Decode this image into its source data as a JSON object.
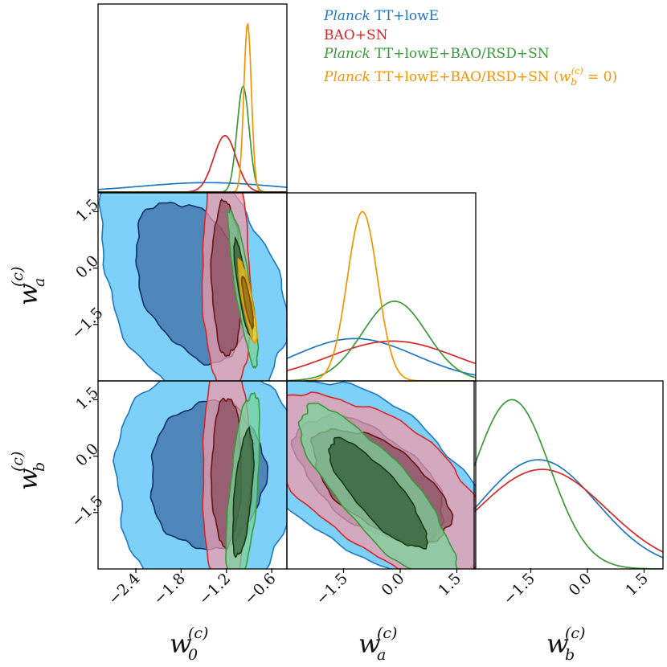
{
  "chart_data": {
    "type": "corner",
    "title": "",
    "parameters": [
      {
        "symbol": "w",
        "sub": "0",
        "sup": "(c)",
        "range": [
          -2.9,
          -0.4
        ],
        "ticks": [
          -2.4,
          -1.8,
          -1.2,
          -0.6
        ]
      },
      {
        "symbol": "w",
        "sub": "a",
        "sup": "(c)",
        "range": [
          -3.0,
          2.0
        ],
        "ticks": [
          -1.5,
          0.0,
          1.5
        ]
      },
      {
        "symbol": "w",
        "sub": "b",
        "sup": "(c)",
        "range": [
          -3.0,
          2.0
        ],
        "ticks": [
          -1.5,
          0.0,
          1.5
        ]
      }
    ],
    "tick_labels": {
      "w0": [
        "−2.4",
        "−1.8",
        "−1.2",
        "−0.6"
      ],
      "wa": [
        "−1.5",
        "0.0",
        "1.5"
      ],
      "wb": [
        "−1.5",
        "0.0",
        "1.5"
      ]
    },
    "colors": {
      "planck": "#1f77c4",
      "baosn": "#d62728",
      "full": "#3a9a3a",
      "wbzero": "#f59400",
      "planck_fill": "#7dd0f7",
      "baosn_fill": "#f39aa8",
      "full_fill": "#79d69a"
    },
    "legend": {
      "position": "top-right",
      "entries": [
        {
          "key": "planck",
          "italic": "Planck",
          "text": " TT+lowE"
        },
        {
          "key": "baosn",
          "italic": "",
          "text": "BAO+SN"
        },
        {
          "key": "full",
          "italic": "Planck",
          "text": " TT+lowE+BAO/RSD+SN"
        },
        {
          "key": "wbzero",
          "italic": "Planck",
          "text": " TT+lowE+BAO/RSD+SN (",
          "math_sym": "w",
          "math_sub": "b",
          "math_sup": "(c)",
          "math_tail": " = 0)"
        }
      ]
    },
    "series": [
      {
        "key": "planck",
        "w0": {
          "mean": -1.45,
          "sigma": 0.9
        },
        "wa": {
          "mean": -1.2,
          "sigma": 1.6
        },
        "wb": {
          "mean": -1.3,
          "sigma": 1.55
        },
        "w0_wa": {
          "mu": [
            -1.65,
            -0.35
          ],
          "sig": [
            0.5,
            1.4
          ],
          "rho": -0.35
        },
        "w0_wb": {
          "mu": [
            -1.45,
            -0.5
          ],
          "sig": [
            0.5,
            1.3
          ],
          "rho": 0.05
        },
        "wa_wb": {
          "mu": [
            -0.8,
            -0.6
          ],
          "sig": [
            1.3,
            1.1
          ],
          "rho": -0.55
        }
      },
      {
        "key": "baosn",
        "w0": {
          "mean": -1.22,
          "sigma": 0.15
        },
        "wa": {
          "mean": -0.2,
          "sigma": 1.7
        },
        "wb": {
          "mean": -1.2,
          "sigma": 1.7
        },
        "w0_wa": {
          "mu": [
            -1.2,
            -0.3
          ],
          "sig": [
            0.13,
            1.35
          ],
          "rho": -0.1
        },
        "w0_wb": {
          "mu": [
            -1.2,
            -0.4
          ],
          "sig": [
            0.13,
            1.3
          ],
          "rho": 0.05
        },
        "wa_wb": {
          "mu": [
            -0.5,
            -0.8
          ],
          "sig": [
            1.2,
            1.0
          ],
          "rho": -0.6
        }
      },
      {
        "key": "full",
        "w0": {
          "mean": -0.98,
          "sigma": 0.08
        },
        "wa": {
          "mean": -0.15,
          "sigma": 0.85
        },
        "wb": {
          "mean": -2.0,
          "sigma": 1.0
        },
        "w0_wa": {
          "mu": [
            -0.98,
            -0.55
          ],
          "sig": [
            0.08,
            0.85
          ],
          "rho": -0.85
        },
        "w0_wb": {
          "mu": [
            -0.98,
            -1.0
          ],
          "sig": [
            0.09,
            1.1
          ],
          "rho": 0.55
        },
        "wa_wb": {
          "mu": [
            -0.6,
            -1.0
          ],
          "sig": [
            0.85,
            0.95
          ],
          "rho": -0.82
        }
      },
      {
        "key": "wbzero",
        "w0": {
          "mean": -0.92,
          "sigma": 0.05
        },
        "wa": {
          "mean": -1.0,
          "sigma": 0.4
        },
        "w0_wa": {
          "mu": [
            -0.92,
            -0.9
          ],
          "sig": [
            0.05,
            0.45
          ],
          "rho": -0.85
        }
      }
    ]
  }
}
